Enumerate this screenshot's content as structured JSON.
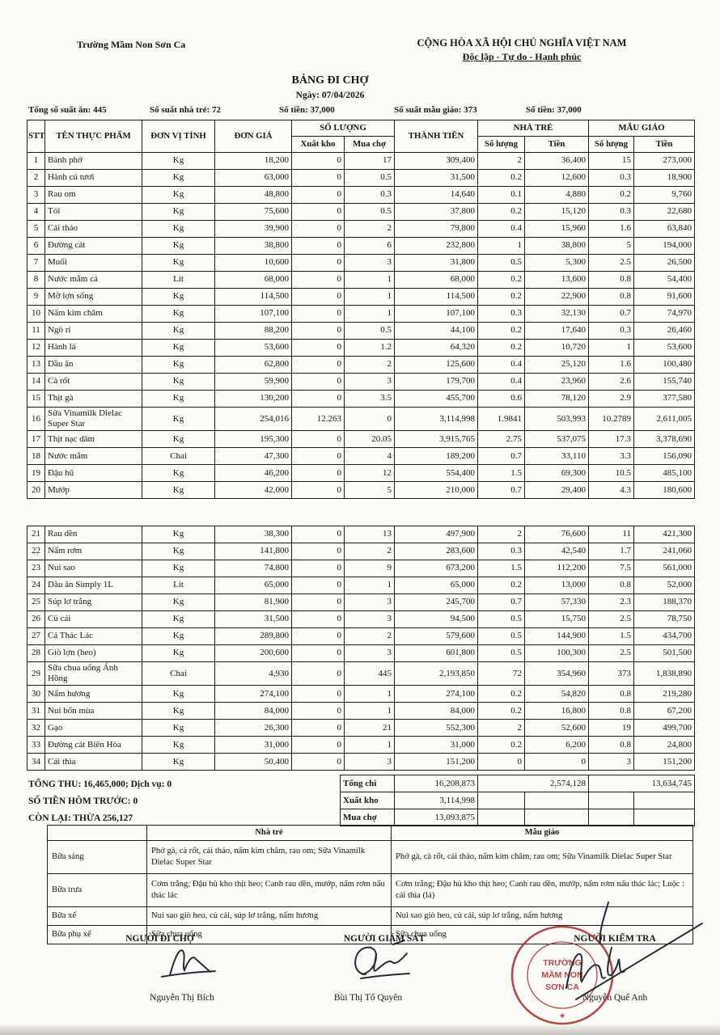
{
  "header": {
    "school": "Trường Mầm Non Sơn Ca",
    "republic_line1": "CỘNG HÒA XÃ HỘI CHỦ NGHĨA VIỆT NAM",
    "republic_line2": "Độc lập - Tự do - Hạnh phúc",
    "title": "BẢNG ĐI CHỢ",
    "date_line": "Ngày: 07/04/2026"
  },
  "stats": {
    "total_servings": "Tổng số suất ăn: 445",
    "nursery_servings": "Số suất nhà trẻ: 72",
    "amount_nursery": "Số tiền: 37,000",
    "kindergarten_servings": "Số suất mẫu giáo: 373",
    "amount_kindergarten": "Số tiền: 37,000"
  },
  "table": {
    "col_headers": {
      "stt": "STT",
      "name": "TÊN THỰC PHẨM",
      "unit": "ĐƠN VỊ TÍNH",
      "price": "ĐƠN GIÁ",
      "quantity_group": "SỐ LƯỢNG",
      "stock_out": "Xuất kho",
      "market_buy": "Mua chợ",
      "total": "THÀNH TIỀN",
      "nursery_group": "NHÀ TRẺ",
      "kindergarten_group": "MẪU GIÁO",
      "qty": "Số lượng",
      "money": "Tiền"
    },
    "block1_rows": [
      [
        "1",
        "Bánh phở",
        "Kg",
        "18,200",
        "0",
        "17",
        "309,400",
        "2",
        "36,400",
        "15",
        "273,000"
      ],
      [
        "2",
        "Hành củ tươi",
        "Kg",
        "63,000",
        "0",
        "0.5",
        "31,500",
        "0.2",
        "12,600",
        "0.3",
        "18,900"
      ],
      [
        "3",
        "Rau om",
        "Kg",
        "48,800",
        "0",
        "0.3",
        "14,640",
        "0.1",
        "4,880",
        "0.2",
        "9,760"
      ],
      [
        "4",
        "Tỏi",
        "Kg",
        "75,600",
        "0",
        "0.5",
        "37,800",
        "0.2",
        "15,120",
        "0.3",
        "22,680"
      ],
      [
        "5",
        "Cải thảo",
        "Kg",
        "39,900",
        "0",
        "2",
        "79,800",
        "0.4",
        "15,960",
        "1.6",
        "63,840"
      ],
      [
        "6",
        "Đường cát",
        "Kg",
        "38,800",
        "0",
        "6",
        "232,800",
        "1",
        "38,800",
        "5",
        "194,000"
      ],
      [
        "7",
        "Muối",
        "Kg",
        "10,600",
        "0",
        "3",
        "31,800",
        "0.5",
        "5,300",
        "2.5",
        "26,500"
      ],
      [
        "8",
        "Nước mắm cá",
        "Lít",
        "68,000",
        "0",
        "1",
        "68,000",
        "0.2",
        "13,600",
        "0.8",
        "54,400"
      ],
      [
        "9",
        "Mỡ lợn sống",
        "Kg",
        "114,500",
        "0",
        "1",
        "114,500",
        "0.2",
        "22,900",
        "0.8",
        "91,600"
      ],
      [
        "10",
        "Nấm kim châm",
        "Kg",
        "107,100",
        "0",
        "1",
        "107,100",
        "0.3",
        "32,130",
        "0.7",
        "74,970"
      ],
      [
        "11",
        "Ngò rí",
        "Kg",
        "88,200",
        "0",
        "0.5",
        "44,100",
        "0.2",
        "17,640",
        "0.3",
        "26,460"
      ],
      [
        "12",
        "Hành lá",
        "Kg",
        "53,600",
        "0",
        "1.2",
        "64,320",
        "0.2",
        "10,720",
        "1",
        "53,600"
      ],
      [
        "13",
        "Dầu ăn",
        "Kg",
        "62,800",
        "0",
        "2",
        "125,600",
        "0.4",
        "25,120",
        "1.6",
        "100,480"
      ],
      [
        "14",
        "Cà rốt",
        "Kg",
        "59,900",
        "0",
        "3",
        "179,700",
        "0.4",
        "23,960",
        "2.6",
        "155,740"
      ],
      [
        "15",
        "Thịt gà",
        "Kg",
        "130,200",
        "0",
        "3.5",
        "455,700",
        "0.6",
        "78,120",
        "2.9",
        "377,580"
      ],
      [
        "16",
        "Sữa Vinamilk Dielac Super Star",
        "Kg",
        "254,016",
        "12.263",
        "0",
        "3,114,998",
        "1.9841",
        "503,993",
        "10.2789",
        "2,611,005"
      ],
      [
        "17",
        "Thịt nạc dăm",
        "Kg",
        "195,300",
        "0",
        "20.05",
        "3,915,765",
        "2.75",
        "537,075",
        "17.3",
        "3,378,690"
      ],
      [
        "18",
        "Nước mắm",
        "Chai",
        "47,300",
        "0",
        "4",
        "189,200",
        "0.7",
        "33,110",
        "3.3",
        "156,090"
      ],
      [
        "19",
        "Đậu hũ",
        "Kg",
        "46,200",
        "0",
        "12",
        "554,400",
        "1.5",
        "69,300",
        "10.5",
        "485,100"
      ],
      [
        "20",
        "Mướp",
        "Kg",
        "42,000",
        "0",
        "5",
        "210,000",
        "0.7",
        "29,400",
        "4.3",
        "180,600"
      ]
    ],
    "block2_rows": [
      [
        "21",
        "Rau dền",
        "Kg",
        "38,300",
        "0",
        "13",
        "497,900",
        "2",
        "76,600",
        "11",
        "421,300"
      ],
      [
        "22",
        "Nấm rơm",
        "Kg",
        "141,800",
        "0",
        "2",
        "283,600",
        "0.3",
        "42,540",
        "1.7",
        "241,060"
      ],
      [
        "23",
        "Nui sao",
        "Kg",
        "74,800",
        "0",
        "9",
        "673,200",
        "1.5",
        "112,200",
        "7.5",
        "561,000"
      ],
      [
        "24",
        "Dầu ăn Simply 1L",
        "Lít",
        "65,000",
        "0",
        "1",
        "65,000",
        "0.2",
        "13,000",
        "0.8",
        "52,000"
      ],
      [
        "25",
        "Súp lơ trắng",
        "Kg",
        "81,900",
        "0",
        "3",
        "245,700",
        "0.7",
        "57,330",
        "2.3",
        "188,370"
      ],
      [
        "26",
        "Củ cải",
        "Kg",
        "31,500",
        "0",
        "3",
        "94,500",
        "0.5",
        "15,750",
        "2.5",
        "78,750"
      ],
      [
        "27",
        "Cá Thác Lác",
        "Kg",
        "289,800",
        "0",
        "2",
        "579,600",
        "0.5",
        "144,900",
        "1.5",
        "434,700"
      ],
      [
        "28",
        "Giò lợn (heo)",
        "Kg",
        "200,600",
        "0",
        "3",
        "601,800",
        "0.5",
        "100,300",
        "2.5",
        "501,500"
      ],
      [
        "29",
        "Sữa chua uống Ánh Hồng",
        "Chai",
        "4,930",
        "0",
        "445",
        "2,193,850",
        "72",
        "354,960",
        "373",
        "1,838,890"
      ],
      [
        "30",
        "Nấm hương",
        "Kg",
        "274,100",
        "0",
        "1",
        "274,100",
        "0.2",
        "54,820",
        "0.8",
        "219,280"
      ],
      [
        "31",
        "Nui bốn mùa",
        "Kg",
        "84,000",
        "0",
        "1",
        "84,000",
        "0.2",
        "16,800",
        "0.8",
        "67,200"
      ],
      [
        "32",
        "Gạo",
        "Kg",
        "26,300",
        "0",
        "21",
        "552,300",
        "2",
        "52,600",
        "19",
        "499,700"
      ],
      [
        "33",
        "Đường cát Biên Hòa",
        "Kg",
        "31,000",
        "0",
        "1",
        "31,000",
        "0.2",
        "6,200",
        "0.8",
        "24,800"
      ],
      [
        "34",
        "Cải thìa",
        "Kg",
        "50,400",
        "0",
        "3",
        "151,200",
        "0",
        "0",
        "3",
        "151,200"
      ]
    ]
  },
  "summary": {
    "left_line1": "TỔNG THU: 16,465,000; Dịch vụ: 0",
    "left_line2": "SỐ TIỀN HÔM TRƯỚC: 0",
    "left_line3": "CÒN LẠI: THỪA 256,127",
    "rows": [
      {
        "label": "Tổng chi",
        "total": "16,208,873",
        "nursery": "2,574,128",
        "kindergarten": "13,634,745"
      },
      {
        "label": "Xuất kho",
        "total": "3,114,998",
        "nursery": "",
        "kindergarten": ""
      },
      {
        "label": "Mua chợ",
        "total": "13,093,875",
        "nursery": "",
        "kindergarten": ""
      }
    ]
  },
  "meals": {
    "nursery_header": "Nhà trẻ",
    "kindergarten_header": "Mẫu giáo",
    "rows": [
      {
        "label": "Bữa sáng",
        "nursery": "Phở gà, cà rốt, cải thảo, nấm kim châm, rau om; Sữa Vinamilk Dielac Super Star",
        "kindergarten": "Phở gà, cà rốt, cải thảo, nấm kim châm, rau om; Sữa Vinamilk Dielac Super Star"
      },
      {
        "label": "Bữa trưa",
        "nursery": "Cơm trắng; Đậu hủ kho thịt heo; Canh rau dền, mướp, nấm rơm nấu thác lác",
        "kindergarten": "Cơm trắng; Đậu hủ kho thịt heo; Canh rau dền, mướp, nấm rơm nấu thác lác; Luộc : cải thìa (lá)"
      },
      {
        "label": "Bữa xế",
        "nursery": "Nui sao giò heo, củ cải, súp lơ trắng, nấm hương",
        "kindergarten": "Nui sao giò heo, củ cải, súp lơ trắng, nấm hương"
      },
      {
        "label": "Bữa phụ xế",
        "nursery": "Sữa chua uống",
        "kindergarten": "Sữa chua uống"
      }
    ]
  },
  "signatures": {
    "shopper": {
      "title": "NGƯỜI ĐI CHỢ",
      "name": "Nguyễn Thị Bích"
    },
    "supervisor": {
      "title": "NGƯỜI GIÁM SÁT",
      "name": "Bùi Thị Tố Quyên"
    },
    "inspector": {
      "title": "NGƯỜI KIỂM TRA",
      "name": "Nguyễn Quế Anh"
    }
  },
  "stamp": {
    "line1": "TRƯỜNG",
    "line2": "MẦM NON",
    "line3": "SƠN CA",
    "star": "★",
    "color": "#a8322e"
  },
  "colors": {
    "paper": "#fcfbf8",
    "ink": "#161616",
    "pen_ink": "#272b38"
  }
}
